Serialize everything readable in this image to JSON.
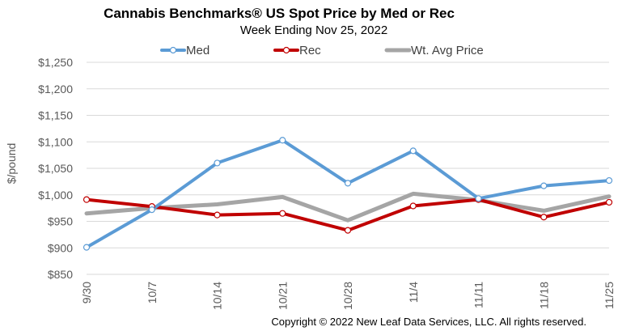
{
  "chart_data": {
    "type": "line",
    "title": "Cannabis Benchmarks® US Spot Price by Med or Rec",
    "subtitle": "Week Ending Nov 25, 2022",
    "xlabel": "",
    "ylabel": "$/pound",
    "categories": [
      "9/30",
      "10/7",
      "10/14",
      "10/21",
      "10/28",
      "11/4",
      "11/11",
      "11/18",
      "11/25"
    ],
    "ylim": [
      850,
      1250
    ],
    "yticks": [
      850,
      900,
      950,
      1000,
      1050,
      1100,
      1150,
      1200,
      1250
    ],
    "ytick_labels": [
      "$850",
      "$900",
      "$950",
      "$1,000",
      "$1,050",
      "$1,100",
      "$1,150",
      "$1,200",
      "$1,250"
    ],
    "grid": true,
    "legend_position": "top",
    "series": [
      {
        "name": "Med",
        "color": "#5B9BD5",
        "values": [
          901,
          972,
          1060,
          1103,
          1022,
          1083,
          993,
          1017,
          1027
        ],
        "markers": true
      },
      {
        "name": "Rec",
        "color": "#C00000",
        "values": [
          991,
          978,
          962,
          965,
          933,
          979,
          991,
          958,
          986
        ],
        "markers": true
      },
      {
        "name": "Wt. Avg Price",
        "color": "#A5A5A5",
        "values": [
          965,
          975,
          982,
          996,
          952,
          1002,
          990,
          970,
          997
        ],
        "markers": false
      }
    ],
    "copyright": "Copyright © 2022 New Leaf Data Services, LLC. All rights reserved."
  }
}
